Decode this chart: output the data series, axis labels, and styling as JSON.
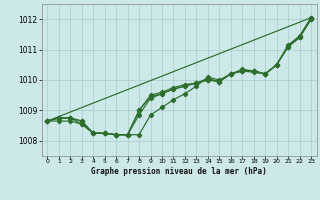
{
  "title": "Graphe pression niveau de la mer (hPa)",
  "background_color": "#cce8e8",
  "grid_color": "#aacccc",
  "line_color": "#2d6e2d",
  "xlim": [
    -0.5,
    23.5
  ],
  "ylim": [
    1007.5,
    1012.5
  ],
  "yticks": [
    1008,
    1009,
    1010,
    1011,
    1012
  ],
  "xtick_labels": [
    "0",
    "1",
    "2",
    "3",
    "4",
    "5",
    "6",
    "7",
    "8",
    "9",
    "10",
    "11",
    "12",
    "13",
    "14",
    "15",
    "16",
    "17",
    "18",
    "19",
    "20",
    "21",
    "22",
    "23"
  ],
  "series": [
    [
      1008.65,
      1008.75,
      1008.75,
      1008.65,
      1008.25,
      1008.25,
      1008.2,
      1008.2,
      1008.2,
      1008.85,
      1009.1,
      1009.35,
      1009.55,
      1009.8,
      1010.1,
      1010.0,
      1010.2,
      1010.3,
      1010.3,
      1010.2,
      1010.5,
      1011.1,
      1011.4,
      1012.0
    ],
    [
      1008.65,
      1008.75,
      1008.75,
      1008.55,
      1008.25,
      1008.25,
      1008.2,
      1008.2,
      1009.0,
      1009.5,
      1009.6,
      1009.75,
      1009.85,
      1009.9,
      1010.05,
      1009.95,
      1010.2,
      1010.35,
      1010.3,
      1010.2,
      1010.5,
      1011.1,
      1011.4,
      1012.0
    ],
    [
      1008.65,
      1008.75,
      1008.75,
      1008.65,
      1008.25,
      1008.25,
      1008.2,
      1008.2,
      1008.85,
      1009.4,
      1009.55,
      1009.7,
      1009.8,
      1009.9,
      1010.0,
      1009.95,
      1010.2,
      1010.3,
      1010.3,
      1010.2,
      1010.5,
      1011.15,
      1011.45,
      1012.05
    ],
    [
      1008.65,
      1008.65,
      1008.65,
      1008.55,
      1008.25,
      1008.25,
      1008.2,
      1008.2,
      1009.0,
      1009.45,
      1009.55,
      1009.7,
      1009.8,
      1009.9,
      1010.0,
      1009.95,
      1010.2,
      1010.3,
      1010.25,
      1010.2,
      1010.5,
      1011.1,
      1011.4,
      1012.05
    ]
  ],
  "straight_line": [
    1008.65,
    1012.05
  ]
}
